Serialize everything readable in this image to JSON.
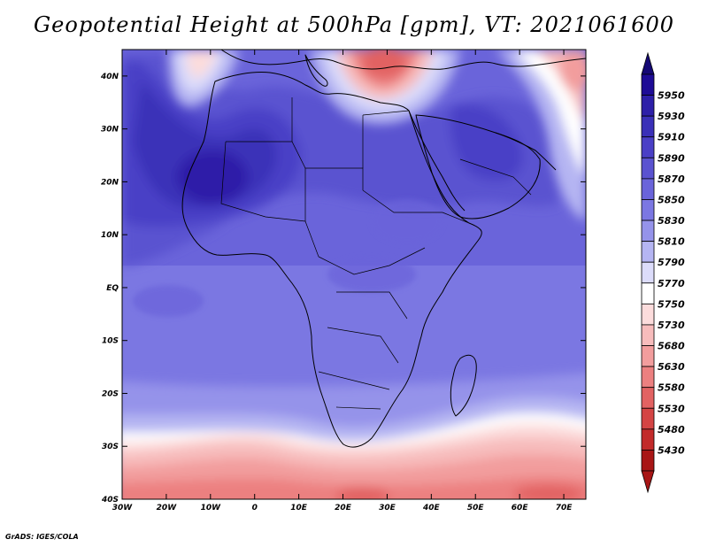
{
  "title": "Geopotential Height at 500hPa [gpm], VT: 2021061600",
  "credit": "GrADS: IGES/COLA",
  "map": {
    "lon_range": [
      -30,
      75
    ],
    "lat_range": [
      -40,
      45
    ],
    "lon_ticks": [
      {
        "value": -30,
        "label": "30W"
      },
      {
        "value": -20,
        "label": "20W"
      },
      {
        "value": -10,
        "label": "10W"
      },
      {
        "value": 0,
        "label": "0"
      },
      {
        "value": 10,
        "label": "10E"
      },
      {
        "value": 20,
        "label": "20E"
      },
      {
        "value": 30,
        "label": "30E"
      },
      {
        "value": 40,
        "label": "40E"
      },
      {
        "value": 50,
        "label": "50E"
      },
      {
        "value": 60,
        "label": "60E"
      },
      {
        "value": 70,
        "label": "70E"
      }
    ],
    "lat_ticks": [
      {
        "value": 40,
        "label": "40N"
      },
      {
        "value": 30,
        "label": "30N"
      },
      {
        "value": 20,
        "label": "20N"
      },
      {
        "value": 10,
        "label": "10N"
      },
      {
        "value": 0,
        "label": "EQ"
      },
      {
        "value": -10,
        "label": "10S"
      },
      {
        "value": -20,
        "label": "20S"
      },
      {
        "value": -30,
        "label": "30S"
      },
      {
        "value": -40,
        "label": "40S"
      }
    ]
  },
  "colorbar": {
    "levels": [
      {
        "label": "5950",
        "color": "#1e0c96"
      },
      {
        "label": "5930",
        "color": "#2d1fa8"
      },
      {
        "label": "5910",
        "color": "#3a30b8"
      },
      {
        "label": "5890",
        "color": "#4a3fc6"
      },
      {
        "label": "5870",
        "color": "#5a52d0"
      },
      {
        "label": "5850",
        "color": "#6a64da"
      },
      {
        "label": "5830",
        "color": "#7b77e2"
      },
      {
        "label": "5810",
        "color": "#9593ea"
      },
      {
        "label": "5790",
        "color": "#b5b5f2"
      },
      {
        "label": "5770",
        "color": "#dcdcfa"
      },
      {
        "label": "5750",
        "color": "#ffffff"
      },
      {
        "label": "5730",
        "color": "#fcdcdc"
      },
      {
        "label": "5680",
        "color": "#f7bcbc"
      },
      {
        "label": "5630",
        "color": "#f29d9d"
      },
      {
        "label": "5580",
        "color": "#ec8080"
      },
      {
        "label": "5530",
        "color": "#e26262"
      },
      {
        "label": "5480",
        "color": "#d44444"
      },
      {
        "label": "5430",
        "color": "#c22a2a"
      },
      {
        "label": "",
        "color": "#a81616"
      }
    ],
    "top_arrow_color": "#150875",
    "bottom_arrow_color": "#a81616"
  }
}
